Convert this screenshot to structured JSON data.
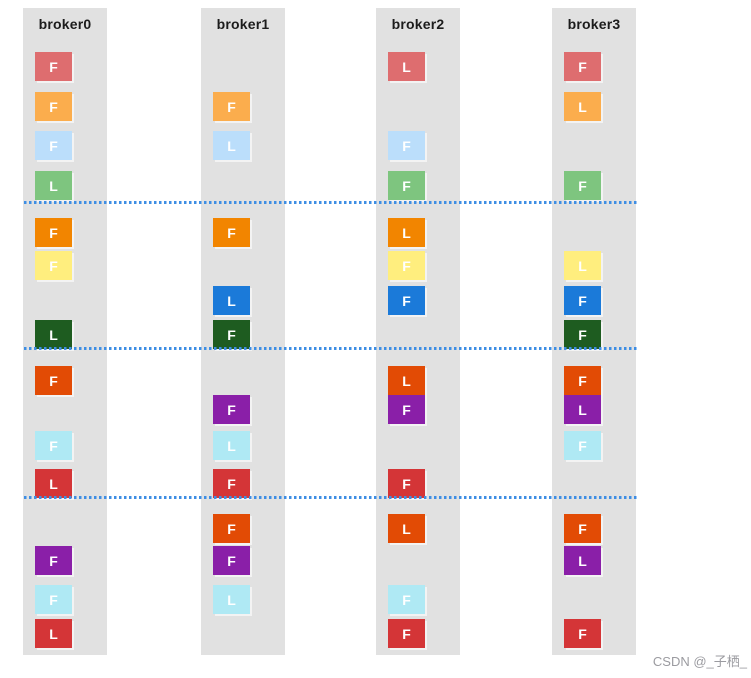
{
  "watermark": {
    "text": "CSDN @_子栖_"
  },
  "colors": {
    "column_bg": "#e1e1e1",
    "divider_blue": "#3e8ee4",
    "label_text": "#ffffff",
    "salmon": "#de6d6f",
    "light_orange": "#fbad4d",
    "pale_blue": "#bbdefb",
    "green": "#7ec57f",
    "orange": "#f28500",
    "pale_yellow": "#ffee7e",
    "blue": "#1b7ad9",
    "dark_green": "#1e5c20",
    "orange_red": "#e24b05",
    "purple": "#8a1fa8",
    "pale_cyan": "#afe9f4",
    "red": "#d43537"
  },
  "brokers": [
    {
      "name": "broker0",
      "cells": [
        {
          "row": 0,
          "label": "F",
          "color": "#de6d6f"
        },
        {
          "row": 1,
          "label": "F",
          "color": "#fbad4d"
        },
        {
          "row": 2,
          "label": "F",
          "color": "#bbdefb"
        },
        {
          "row": 3,
          "label": "L",
          "color": "#7ec57f"
        },
        {
          "row": 4,
          "label": "F",
          "color": "#f28500"
        },
        {
          "row": 5,
          "label": "F",
          "color": "#ffee7e"
        },
        {
          "row": 7,
          "label": "L",
          "color": "#1e5c20"
        },
        {
          "row": 8,
          "label": "F",
          "color": "#e24b05"
        },
        {
          "row": 10,
          "label": "F",
          "color": "#afe9f4"
        },
        {
          "row": 11,
          "label": "L",
          "color": "#d43537"
        },
        {
          "row": 13,
          "label": "F",
          "color": "#8a1fa8"
        },
        {
          "row": 14,
          "label": "F",
          "color": "#afe9f4"
        },
        {
          "row": 15,
          "label": "L",
          "color": "#d43537"
        }
      ]
    },
    {
      "name": "broker1",
      "cells": [
        {
          "row": 1,
          "label": "F",
          "color": "#fbad4d"
        },
        {
          "row": 2,
          "label": "L",
          "color": "#bbdefb"
        },
        {
          "row": 4,
          "label": "F",
          "color": "#f28500"
        },
        {
          "row": 6,
          "label": "L",
          "color": "#1b7ad9"
        },
        {
          "row": 7,
          "label": "F",
          "color": "#1e5c20"
        },
        {
          "row": 9,
          "label": "F",
          "color": "#8a1fa8"
        },
        {
          "row": 10,
          "label": "L",
          "color": "#afe9f4"
        },
        {
          "row": 11,
          "label": "F",
          "color": "#d43537"
        },
        {
          "row": 12,
          "label": "F",
          "color": "#e24b05"
        },
        {
          "row": 13,
          "label": "F",
          "color": "#8a1fa8"
        },
        {
          "row": 14,
          "label": "L",
          "color": "#afe9f4"
        }
      ]
    },
    {
      "name": "broker2",
      "cells": [
        {
          "row": 0,
          "label": "L",
          "color": "#de6d6f"
        },
        {
          "row": 2,
          "label": "F",
          "color": "#bbdefb"
        },
        {
          "row": 3,
          "label": "F",
          "color": "#7ec57f"
        },
        {
          "row": 4,
          "label": "L",
          "color": "#f28500"
        },
        {
          "row": 5,
          "label": "F",
          "color": "#ffee7e"
        },
        {
          "row": 6,
          "label": "F",
          "color": "#1b7ad9"
        },
        {
          "row": 8,
          "label": "L",
          "color": "#e24b05"
        },
        {
          "row": 9,
          "label": "F",
          "color": "#8a1fa8"
        },
        {
          "row": 11,
          "label": "F",
          "color": "#d43537"
        },
        {
          "row": 12,
          "label": "L",
          "color": "#e24b05"
        },
        {
          "row": 14,
          "label": "F",
          "color": "#afe9f4"
        },
        {
          "row": 15,
          "label": "F",
          "color": "#d43537"
        }
      ]
    },
    {
      "name": "broker3",
      "cells": [
        {
          "row": 0,
          "label": "F",
          "color": "#de6d6f"
        },
        {
          "row": 1,
          "label": "L",
          "color": "#fbad4d"
        },
        {
          "row": 3,
          "label": "F",
          "color": "#7ec57f"
        },
        {
          "row": 5,
          "label": "L",
          "color": "#ffee7e"
        },
        {
          "row": 6,
          "label": "F",
          "color": "#1b7ad9"
        },
        {
          "row": 7,
          "label": "F",
          "color": "#1e5c20"
        },
        {
          "row": 8,
          "label": "F",
          "color": "#e24b05"
        },
        {
          "row": 9,
          "label": "L",
          "color": "#8a1fa8"
        },
        {
          "row": 10,
          "label": "F",
          "color": "#afe9f4"
        },
        {
          "row": 12,
          "label": "F",
          "color": "#e24b05"
        },
        {
          "row": 13,
          "label": "L",
          "color": "#8a1fa8"
        },
        {
          "row": 15,
          "label": "F",
          "color": "#d43537"
        }
      ]
    }
  ]
}
